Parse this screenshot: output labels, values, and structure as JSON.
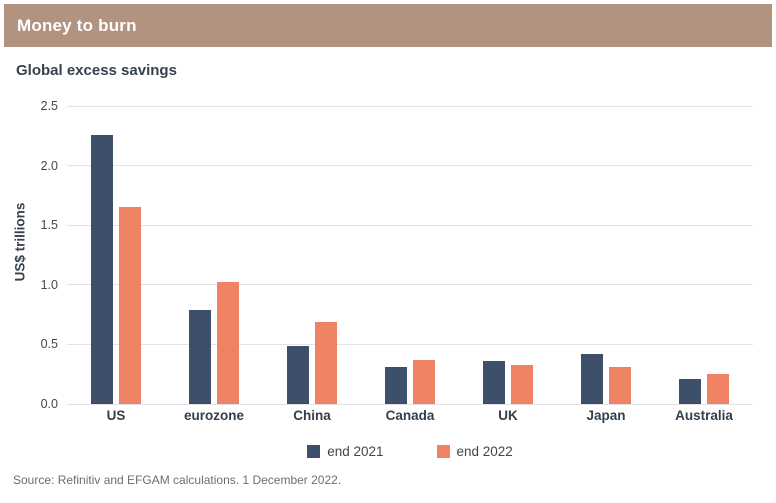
{
  "header": {
    "title": "Money to burn"
  },
  "chart_data": {
    "type": "bar",
    "title": "Global excess savings",
    "ylabel": "US$ trillions",
    "xlabel": "",
    "categories": [
      "US",
      "eurozone",
      "China",
      "Canada",
      "UK",
      "Japan",
      "Australia"
    ],
    "series": [
      {
        "name": "end 2021",
        "color": "#3d4f6a",
        "values": [
          2.26,
          0.79,
          0.49,
          0.31,
          0.36,
          0.42,
          0.21
        ]
      },
      {
        "name": "end 2022",
        "color": "#ef8164",
        "values": [
          1.65,
          1.02,
          0.69,
          0.37,
          0.33,
          0.31,
          0.25
        ]
      }
    ],
    "ylim": [
      0,
      2.5
    ],
    "yticks": [
      0.0,
      0.5,
      1.0,
      1.5,
      2.0,
      2.5
    ],
    "grid": true,
    "legend_position": "bottom"
  },
  "footer": {
    "source": "Source: Refinitiv and EFGAM calculations. 1 December 2022."
  },
  "colors": {
    "header_bg": "#b19380",
    "header_text": "#ffffff",
    "series_2021": "#3d4f6a",
    "series_2022": "#ef8164",
    "grid": "#e3e3e7",
    "text": "#37424d",
    "source_text": "#6e6e6e"
  }
}
